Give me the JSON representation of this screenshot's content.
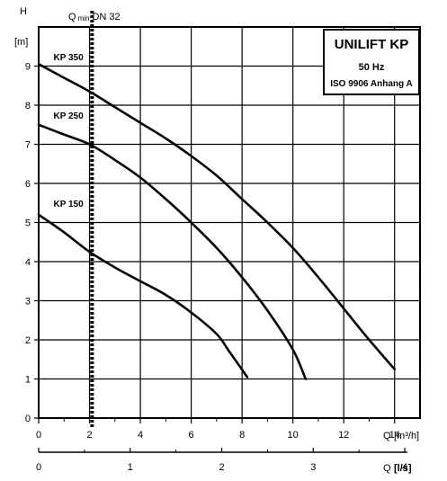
{
  "chart_data": {
    "type": "line",
    "legend_box": {
      "title": "UNILIFT KP",
      "line2": "50 Hz",
      "line3": "ISO 9906 Anhang A"
    },
    "y_axis": {
      "label": "H",
      "unit": "[m]",
      "ticks": [
        "0",
        "1",
        "2",
        "3",
        "4",
        "5",
        "6",
        "7",
        "8",
        "9"
      ],
      "range": [
        0,
        10
      ]
    },
    "x_axis": {
      "label": "Q",
      "unit": "[m³/h]",
      "ticks": [
        "0",
        "2",
        "4",
        "6",
        "8",
        "10",
        "12",
        "14"
      ],
      "range": [
        0,
        15
      ]
    },
    "x_axis_secondary": {
      "label": "Q",
      "unit": "[l/s]",
      "ticks": [
        "0",
        "1",
        "2",
        "3",
        "4"
      ],
      "ticks_at_m3h": [
        0,
        3.6,
        7.2,
        10.8,
        14.4
      ]
    },
    "qmin": {
      "label_main": "Q",
      "label_sub": "min",
      "label_rest": "DN 32",
      "x": 2.1
    },
    "series": [
      {
        "name": "KP 350",
        "label_at": [
          0.3,
          9.15
        ],
        "points": [
          [
            0,
            9.05
          ],
          [
            1,
            8.7
          ],
          [
            2,
            8.35
          ],
          [
            3,
            7.95
          ],
          [
            4,
            7.55
          ],
          [
            5,
            7.15
          ],
          [
            6,
            6.7
          ],
          [
            7,
            6.2
          ],
          [
            8,
            5.6
          ],
          [
            9,
            5.0
          ],
          [
            10,
            4.35
          ],
          [
            11,
            3.6
          ],
          [
            12,
            2.8
          ],
          [
            13,
            2.0
          ],
          [
            14,
            1.25
          ]
        ]
      },
      {
        "name": "KP 250",
        "label_at": [
          0.3,
          7.65
        ],
        "points": [
          [
            0,
            7.5
          ],
          [
            1,
            7.25
          ],
          [
            2,
            7.0
          ],
          [
            3,
            6.6
          ],
          [
            4,
            6.15
          ],
          [
            5,
            5.6
          ],
          [
            6,
            5.0
          ],
          [
            7,
            4.35
          ],
          [
            8,
            3.6
          ],
          [
            9,
            2.75
          ],
          [
            10,
            1.75
          ],
          [
            10.5,
            1.0
          ]
        ]
      },
      {
        "name": "KP 150",
        "label_at": [
          0.3,
          5.4
        ],
        "points": [
          [
            0,
            5.2
          ],
          [
            1,
            4.75
          ],
          [
            2,
            4.25
          ],
          [
            3,
            3.85
          ],
          [
            4,
            3.5
          ],
          [
            5,
            3.15
          ],
          [
            6,
            2.7
          ],
          [
            7,
            2.15
          ],
          [
            7.5,
            1.7
          ],
          [
            8.2,
            1.05
          ]
        ]
      }
    ],
    "grid": true
  }
}
